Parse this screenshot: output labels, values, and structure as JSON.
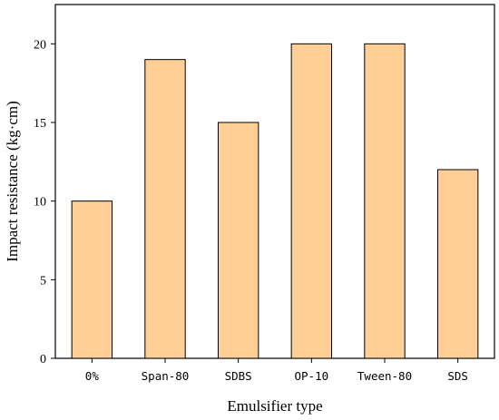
{
  "chart_data": {
    "type": "bar",
    "xlabel": "Emulsifier type",
    "ylabel": "Impact resistance (kg·cm)",
    "categories": [
      "0%",
      "Span-80",
      "SDBS",
      "OP-10",
      "Tween-80",
      "SDS"
    ],
    "values": [
      10,
      19,
      15,
      20,
      20,
      12
    ],
    "ylim": [
      0,
      22.5
    ],
    "yticks": [
      0,
      5,
      10,
      15,
      20
    ],
    "grid": false,
    "legend": "none",
    "bar_color": "#FFCF96",
    "bar_edge_color": "#000000"
  }
}
